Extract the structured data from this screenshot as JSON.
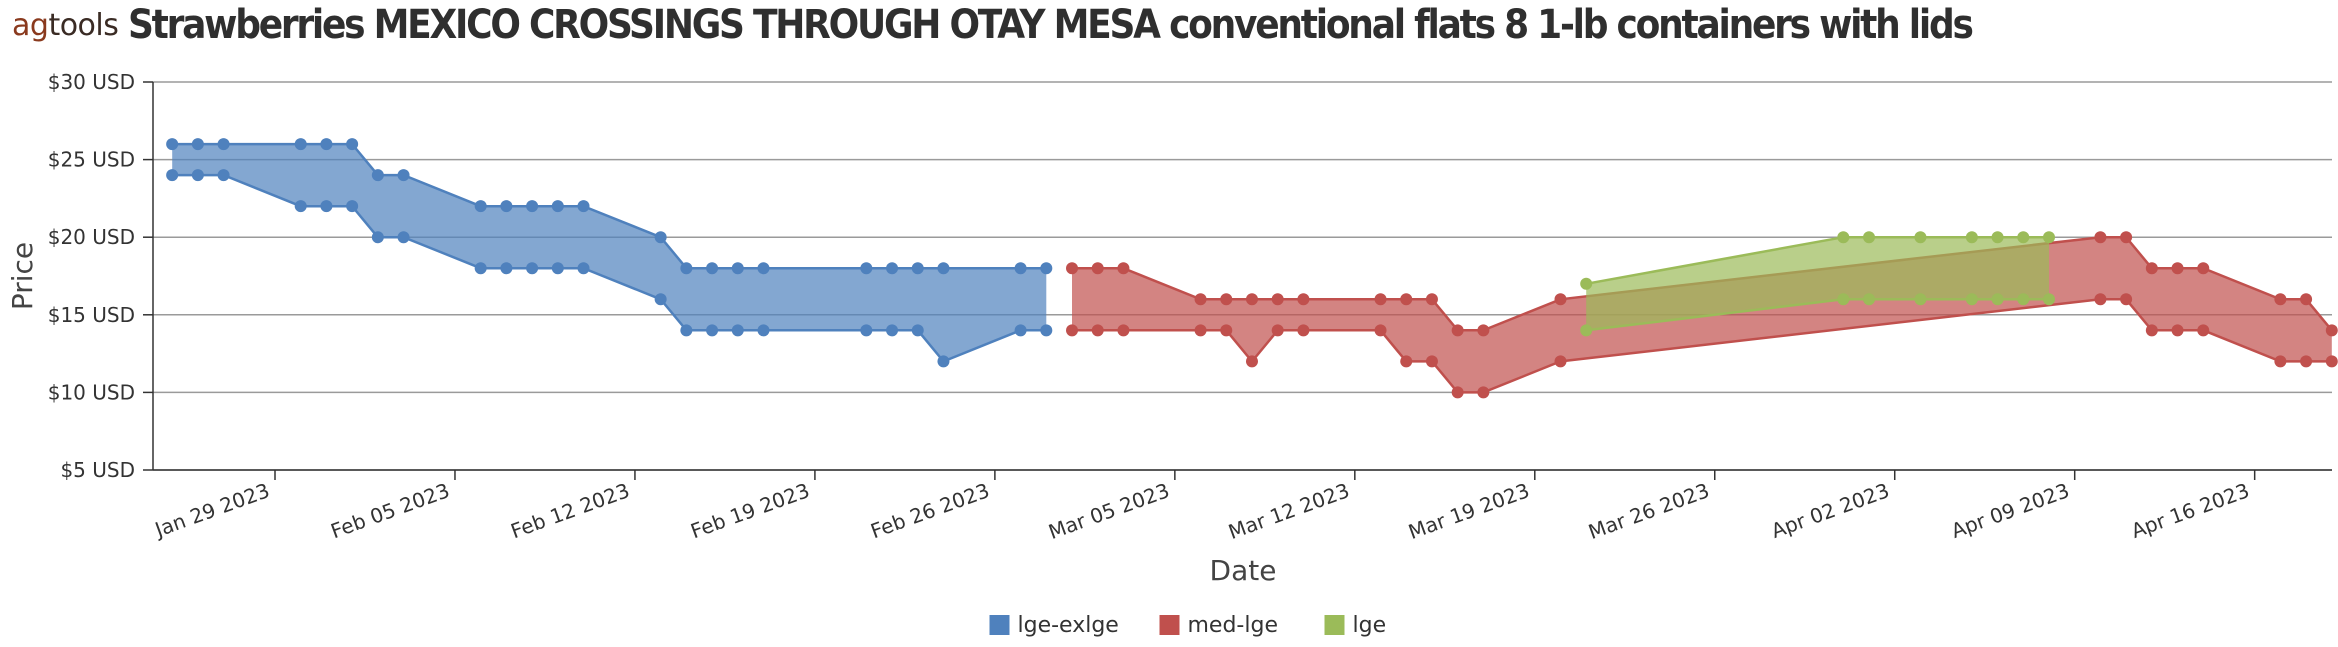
{
  "logo": {
    "prefix": "ag",
    "suffix": "tools"
  },
  "title": "Strawberries MEXICO CROSSINGS THROUGH OTAY MESA conventional flats 8 1-lb containers with lids",
  "colors": {
    "lge-exlge": "#4f81bd",
    "med-lge": "#c0504d",
    "lge": "#9bbb59"
  },
  "chart_data": {
    "type": "area",
    "title": "Strawberries MEXICO CROSSINGS THROUGH OTAY MESA conventional flats 8 1-lb containers with lids",
    "xlabel": "Date",
    "ylabel": "Price",
    "ylim": [
      5,
      30
    ],
    "yticks": [
      5,
      10,
      15,
      20,
      25,
      30
    ],
    "ytick_labels": [
      "$5 USD",
      "$10 USD",
      "$15 USD",
      "$20 USD",
      "$25 USD",
      "$30 USD"
    ],
    "xticks": [
      "2023-01-29",
      "2023-02-05",
      "2023-02-12",
      "2023-02-19",
      "2023-02-26",
      "2023-03-05",
      "2023-03-12",
      "2023-03-19",
      "2023-03-26",
      "2023-04-02",
      "2023-04-09",
      "2023-04-16"
    ],
    "xtick_labels": [
      "Jan 29 2023",
      "Feb 05 2023",
      "Feb 12 2023",
      "Feb 19 2023",
      "Feb 26 2023",
      "Mar 05 2023",
      "Mar 12 2023",
      "Mar 19 2023",
      "Mar 26 2023",
      "Apr 02 2023",
      "Apr 09 2023",
      "Apr 16 2023"
    ],
    "xlim": [
      "2023-01-24",
      "2023-04-20"
    ],
    "grid": true,
    "legend": "bottom-center",
    "series": [
      {
        "name": "lge-exlge",
        "color": "#4f81bd",
        "points": [
          {
            "date": "2023-01-25",
            "low": 24,
            "high": 26
          },
          {
            "date": "2023-01-26",
            "low": 24,
            "high": 26
          },
          {
            "date": "2023-01-27",
            "low": 24,
            "high": 26
          },
          {
            "date": "2023-01-30",
            "low": 22,
            "high": 26
          },
          {
            "date": "2023-01-31",
            "low": 22,
            "high": 26
          },
          {
            "date": "2023-02-01",
            "low": 22,
            "high": 26
          },
          {
            "date": "2023-02-02",
            "low": 20,
            "high": 24
          },
          {
            "date": "2023-02-03",
            "low": 20,
            "high": 24
          },
          {
            "date": "2023-02-06",
            "low": 18,
            "high": 22
          },
          {
            "date": "2023-02-07",
            "low": 18,
            "high": 22
          },
          {
            "date": "2023-02-08",
            "low": 18,
            "high": 22
          },
          {
            "date": "2023-02-09",
            "low": 18,
            "high": 22
          },
          {
            "date": "2023-02-10",
            "low": 18,
            "high": 22
          },
          {
            "date": "2023-02-13",
            "low": 16,
            "high": 20
          },
          {
            "date": "2023-02-14",
            "low": 14,
            "high": 18
          },
          {
            "date": "2023-02-15",
            "low": 14,
            "high": 18
          },
          {
            "date": "2023-02-16",
            "low": 14,
            "high": 18
          },
          {
            "date": "2023-02-17",
            "low": 14,
            "high": 18
          },
          {
            "date": "2023-02-21",
            "low": 14,
            "high": 18
          },
          {
            "date": "2023-02-22",
            "low": 14,
            "high": 18
          },
          {
            "date": "2023-02-23",
            "low": 14,
            "high": 18
          },
          {
            "date": "2023-02-24",
            "low": 12,
            "high": 18
          },
          {
            "date": "2023-02-27",
            "low": 14,
            "high": 18
          },
          {
            "date": "2023-02-28",
            "low": 14,
            "high": 18
          }
        ]
      },
      {
        "name": "med-lge",
        "color": "#c0504d",
        "points": [
          {
            "date": "2023-03-01",
            "low": 14,
            "high": 18
          },
          {
            "date": "2023-03-02",
            "low": 14,
            "high": 18
          },
          {
            "date": "2023-03-03",
            "low": 14,
            "high": 18
          },
          {
            "date": "2023-03-06",
            "low": 14,
            "high": 16
          },
          {
            "date": "2023-03-07",
            "low": 14,
            "high": 16
          },
          {
            "date": "2023-03-08",
            "low": 12,
            "high": 16
          },
          {
            "date": "2023-03-09",
            "low": 14,
            "high": 16
          },
          {
            "date": "2023-03-10",
            "low": 14,
            "high": 16
          },
          {
            "date": "2023-03-13",
            "low": 14,
            "high": 16
          },
          {
            "date": "2023-03-14",
            "low": 12,
            "high": 16
          },
          {
            "date": "2023-03-15",
            "low": 12,
            "high": 16
          },
          {
            "date": "2023-03-16",
            "low": 10,
            "high": 14
          },
          {
            "date": "2023-03-17",
            "low": 10,
            "high": 14
          },
          {
            "date": "2023-03-20",
            "low": 12,
            "high": 16
          },
          {
            "date": "2023-04-10",
            "low": 16,
            "high": 20
          },
          {
            "date": "2023-04-11",
            "low": 16,
            "high": 20
          },
          {
            "date": "2023-04-12",
            "low": 14,
            "high": 18
          },
          {
            "date": "2023-04-13",
            "low": 14,
            "high": 18
          },
          {
            "date": "2023-04-14",
            "low": 14,
            "high": 18
          },
          {
            "date": "2023-04-17",
            "low": 12,
            "high": 16
          },
          {
            "date": "2023-04-18",
            "low": 12,
            "high": 16
          },
          {
            "date": "2023-04-19",
            "low": 12,
            "high": 14
          }
        ]
      },
      {
        "name": "lge",
        "color": "#9bbb59",
        "points": [
          {
            "date": "2023-03-21",
            "low": 14,
            "high": 17
          },
          {
            "date": "2023-03-31",
            "low": 16,
            "high": 20
          },
          {
            "date": "2023-04-01",
            "low": 16,
            "high": 20
          },
          {
            "date": "2023-04-03",
            "low": 16,
            "high": 20
          },
          {
            "date": "2023-04-05",
            "low": 16,
            "high": 20
          },
          {
            "date": "2023-04-06",
            "low": 16,
            "high": 20
          },
          {
            "date": "2023-04-07",
            "low": 16,
            "high": 20
          },
          {
            "date": "2023-04-08",
            "low": 16,
            "high": 20
          }
        ]
      }
    ]
  }
}
